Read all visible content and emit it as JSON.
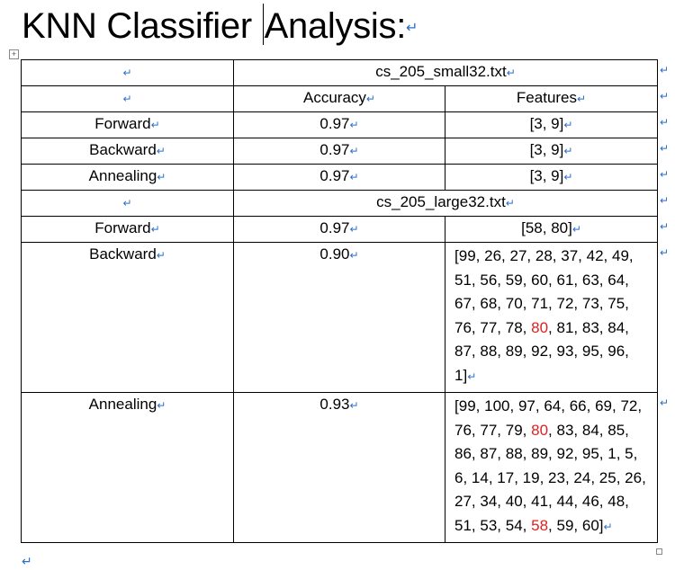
{
  "doc": {
    "title": "KNN Classifier Analysis:",
    "para_mark": "↵"
  },
  "table": {
    "small_file": "cs_205_small32.txt",
    "large_file": "cs_205_large32.txt",
    "col_accuracy": "Accuracy",
    "col_features": "Features",
    "small_rows": [
      {
        "method": "Forward",
        "accuracy": "0.97",
        "features": "[3, 9]"
      },
      {
        "method": "Backward",
        "accuracy": "0.97",
        "features": "[3, 9]"
      },
      {
        "method": "Annealing",
        "accuracy": "0.97",
        "features": "[3, 9]"
      }
    ],
    "large_rows": [
      {
        "method": "Forward",
        "accuracy": "0.97",
        "features": "[58, 80]"
      },
      {
        "method": "Backward",
        "accuracy": "0.90",
        "features_list": [
          "99",
          "26",
          "27",
          "28",
          "37",
          "42",
          "49",
          "51",
          "56",
          "59",
          "60",
          "61",
          "63",
          "64",
          "67",
          "68",
          "70",
          "71",
          "72",
          "73",
          "75",
          "76",
          "77",
          "78",
          "80",
          "81",
          "83",
          "84",
          "87",
          "88",
          "89",
          "92",
          "93",
          "95",
          "96",
          "1"
        ],
        "highlight": [
          "80"
        ]
      },
      {
        "method": "Annealing",
        "accuracy": "0.93",
        "features_list": [
          "99",
          "100",
          "97",
          "64",
          "66",
          "69",
          "72",
          "76",
          "77",
          "79",
          "80",
          "83",
          "84",
          "85",
          "86",
          "87",
          "88",
          "89",
          "92",
          "95",
          "1",
          "5",
          "6",
          "14",
          "17",
          "19",
          "23",
          "24",
          "25",
          "26",
          "27",
          "34",
          "40",
          "41",
          "44",
          "46",
          "48",
          "51",
          "53",
          "54",
          "58",
          "59",
          "60"
        ],
        "highlight": [
          "80",
          "58"
        ]
      }
    ]
  },
  "colors": {
    "highlight": "#e02020",
    "format_mark": "#2a6fc9"
  }
}
